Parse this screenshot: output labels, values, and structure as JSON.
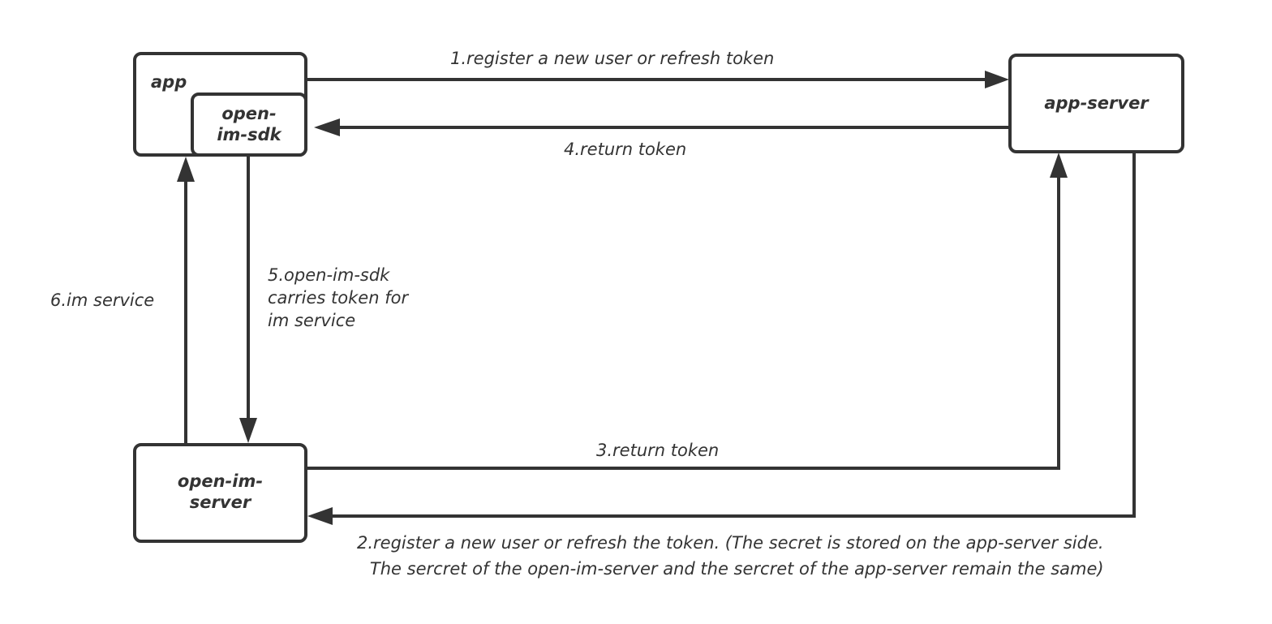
{
  "nodes": {
    "app": "app",
    "sdk_line1": "open-",
    "sdk_line2": "im-sdk",
    "app_server": "app-server",
    "im_server_line1": "open-im-",
    "im_server_line2": "server"
  },
  "edges": {
    "e1": "1.register a new user or refresh token",
    "e2_line1": "2.register a new user or refresh the token. (The secret is stored on the app-server side.",
    "e2_line2": "The sercret of the open-im-server and the sercret of the app-server remain the same)",
    "e3": "3.return token",
    "e4": "4.return token",
    "e5_line1": "5.open-im-sdk",
    "e5_line2": "carries token for",
    "e5_line3": "im service",
    "e6": "6.im service"
  },
  "colors": {
    "stroke": "#333333",
    "background": "#ffffff"
  }
}
